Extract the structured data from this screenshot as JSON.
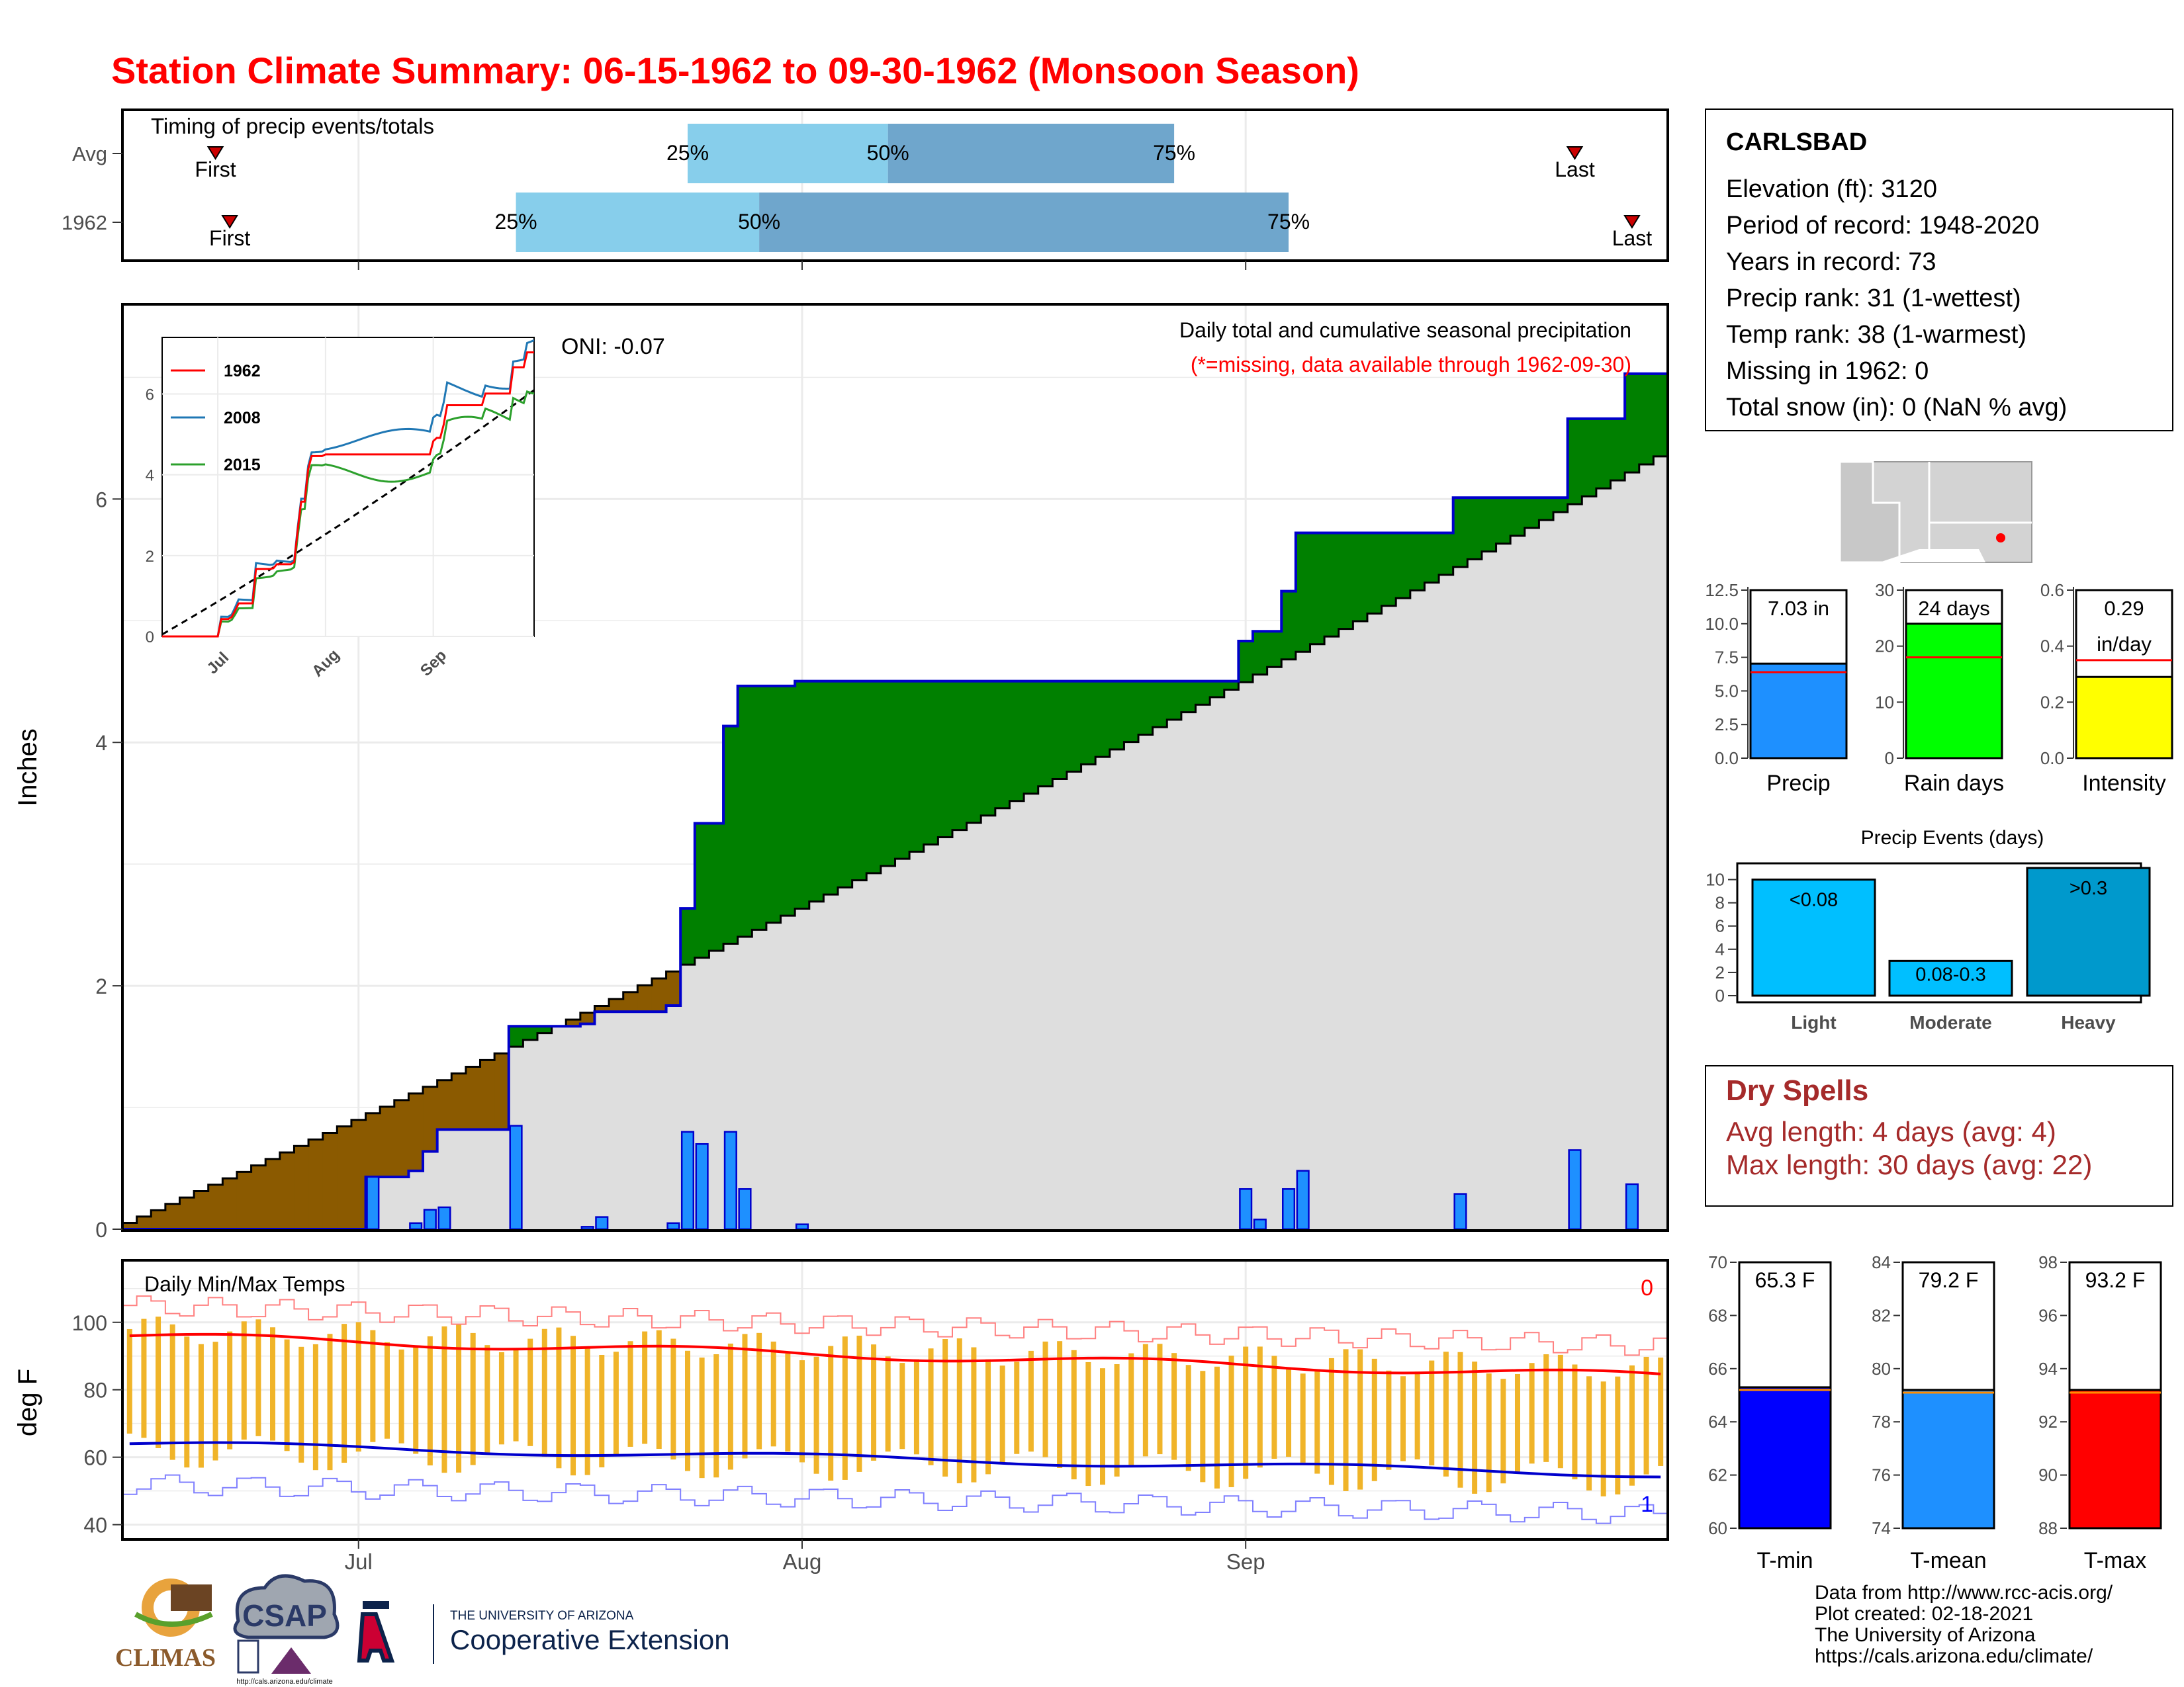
{
  "title": "Station Climate Summary: 06-15-1962 to 09-30-1962 (Monsoon Season)",
  "timing": {
    "title": "Timing of precip events/totals",
    "rows": [
      {
        "label": "Avg",
        "first_label": "First",
        "last_label": "Last",
        "p25_label": "25%",
        "p50_label": "50%",
        "p75_label": "75%"
      },
      {
        "label": "1962",
        "first_label": "First",
        "last_label": "Last",
        "p25_label": "25%",
        "p50_label": "50%",
        "p75_label": "75%"
      }
    ]
  },
  "station": {
    "name": "CARLSBAD",
    "lines": [
      "Elevation (ft): 3120",
      "Period of record: 1948-2020",
      "Years in record: 73",
      "Precip rank: 31 (1-wettest)",
      "Temp rank: 38 (1-warmest)",
      "Missing in 1962: 0",
      "Total snow (in): 0 (NaN % avg)"
    ]
  },
  "precip_panel": {
    "title": "Daily total and cumulative seasonal precipitation",
    "subtitle": "(*=missing, data available through 1962-09-30)",
    "oni": "ONI: -0.07",
    "ylabel": "Inches",
    "month_labels": [
      "Jul",
      "Aug",
      "Sep"
    ]
  },
  "temp_panel": {
    "title": "Daily Min/Max Temps",
    "ylabel": "deg F",
    "count_top": "0",
    "count_bottom": "1"
  },
  "summary_bars": {
    "precip": {
      "label": "Precip",
      "value_text": "7.03 in",
      "value": 7.03,
      "avg": 6.4,
      "ymax": 12.5,
      "color": "#1e90ff"
    },
    "rain_days": {
      "label": "Rain days",
      "value_text": "24 days",
      "value": 24,
      "avg": 18,
      "ymax": 30,
      "color": "#00ff00"
    },
    "intensity": {
      "label": "Intensity",
      "value_text": "0.29",
      "value_text2": "in/day",
      "value": 0.29,
      "avg": 0.35,
      "ymax": 0.6,
      "color": "#ffff00"
    }
  },
  "events": {
    "title": "Precip Events (days)",
    "bars": [
      {
        "category": "Light",
        "label": "<0.08",
        "value": 10
      },
      {
        "category": "Moderate",
        "label": "0.08-0.3",
        "value": 3
      },
      {
        "category": "Heavy",
        "label": ">0.3",
        "value": 11
      }
    ]
  },
  "dry_spells": {
    "title": "Dry Spells",
    "avg_length": "Avg length: 4 days (avg: 4)",
    "max_length": "Max length: 30 days (avg: 22)"
  },
  "temp_bars": {
    "tmin": {
      "label": "T-min",
      "value_text": "65.3 F",
      "value": 65.3,
      "avg": 65.2,
      "ymin": 60,
      "ymax": 70,
      "color": "#0000ff"
    },
    "tmean": {
      "label": "T-mean",
      "value_text": "79.2 F",
      "value": 79.2,
      "avg": 79.1,
      "ymin": 74,
      "ymax": 84,
      "color": "#1e90ff"
    },
    "tmax": {
      "label": "T-max",
      "value_text": "93.2 F",
      "value": 93.2,
      "avg": 93.1,
      "ymin": 88,
      "ymax": 98,
      "color": "#ff0000"
    }
  },
  "credits": [
    "Data from http://www.rcc-acis.org/",
    "Plot created: 02-18-2021",
    "The University of Arizona",
    "https://cals.arizona.edu/climate/"
  ],
  "logos": {
    "climas": "CLIMAS",
    "csap": "CSAP",
    "csap_url": "http://cals.arizona.edu/climate",
    "ua_small": "THE UNIVERSITY OF ARIZONA",
    "ua_big": "Cooperative Extension"
  },
  "chart_data": {
    "type": "area",
    "x_range": [
      "1962-06-15",
      "1962-09-30"
    ],
    "ylim_precip": [
      0,
      7.6
    ],
    "ylim_temp": [
      36,
      118
    ],
    "timing": {
      "avg": {
        "first": "06-21",
        "p25": "07-24",
        "p50": "08-07",
        "p75": "08-27",
        "last": "09-24"
      },
      "1962": {
        "first": "06-22",
        "p25": "07-12",
        "p50": "07-29",
        "p75": "09-04",
        "last": "09-28"
      }
    },
    "daily_precip": [
      {
        "date": "07-02",
        "value": 0.43
      },
      {
        "date": "07-05",
        "value": 0.05
      },
      {
        "date": "07-06",
        "value": 0.16
      },
      {
        "date": "07-07",
        "value": 0.18
      },
      {
        "date": "07-12",
        "value": 0.85
      },
      {
        "date": "07-17",
        "value": 0.02
      },
      {
        "date": "07-18",
        "value": 0.1
      },
      {
        "date": "07-23",
        "value": 0.05
      },
      {
        "date": "07-24",
        "value": 0.8
      },
      {
        "date": "07-25",
        "value": 0.7
      },
      {
        "date": "07-27",
        "value": 0.8
      },
      {
        "date": "07-28",
        "value": 0.33
      },
      {
        "date": "08-01",
        "value": 0.04
      },
      {
        "date": "09-01",
        "value": 0.33
      },
      {
        "date": "09-02",
        "value": 0.08
      },
      {
        "date": "09-04",
        "value": 0.33
      },
      {
        "date": "09-05",
        "value": 0.48
      },
      {
        "date": "09-16",
        "value": 0.29
      },
      {
        "date": "09-24",
        "value": 0.65
      },
      {
        "date": "09-28",
        "value": 0.37
      }
    ],
    "cumulative_1962_end": 7.03,
    "cumulative_avg_end": 6.35,
    "inset": {
      "series": [
        {
          "name": "1962",
          "color": "#ff0000"
        },
        {
          "name": "2008",
          "color": "#1f77b4"
        },
        {
          "name": "2015",
          "color": "#2ca02c"
        }
      ],
      "yticks": [
        "0",
        "2",
        "4",
        "6"
      ],
      "xticks": [
        "Jul",
        "Aug",
        "Sep"
      ]
    },
    "temp_smoothed_max_range": [
      96,
      84
    ],
    "temp_smoothed_min_range": [
      64,
      55
    ],
    "yticks_precip": [
      "0",
      "2",
      "4",
      "6"
    ],
    "yticks_temp": [
      "40",
      "60",
      "80",
      "100"
    ]
  }
}
